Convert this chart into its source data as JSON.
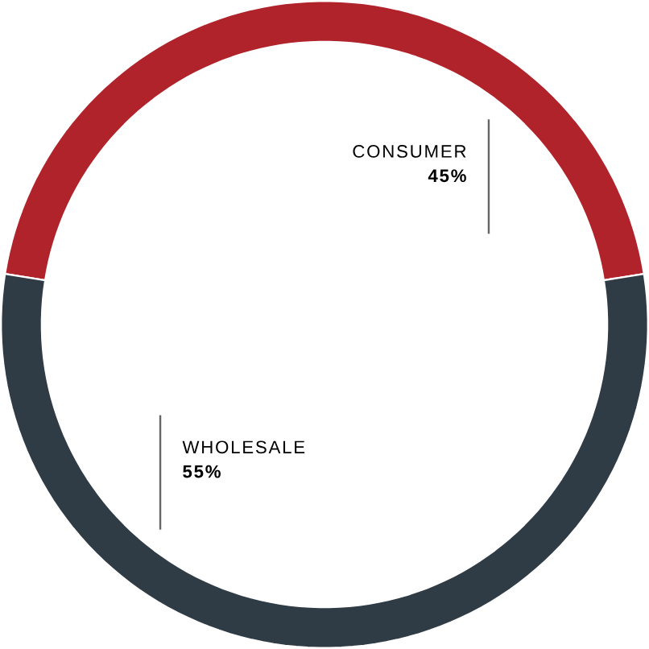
{
  "chart_data": {
    "type": "donut",
    "categories": [
      "CONSUMER",
      "WHOLESALE"
    ],
    "values": [
      45,
      55
    ],
    "colors": [
      "#b0232b",
      "#2f3b45"
    ],
    "value_labels": [
      "45%",
      "55%"
    ]
  }
}
